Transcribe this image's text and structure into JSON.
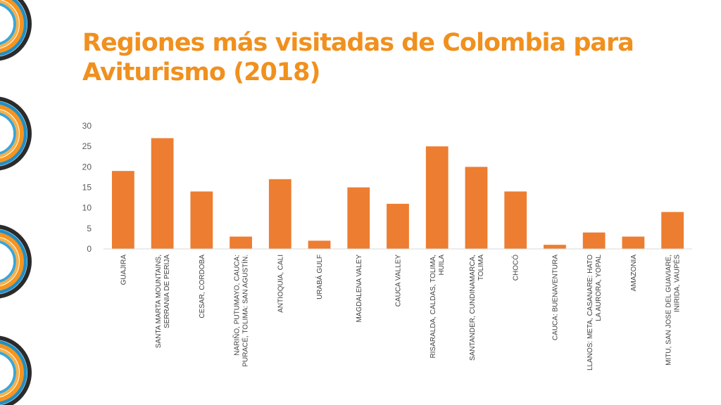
{
  "title": "Regiones más visitadas de Colombia para Aviturismo (2018)",
  "colors": {
    "title": "#f0901e",
    "bar": "#ed7d31",
    "axis": "#d9d9d9",
    "tick_text": "#595959"
  },
  "chart_data": {
    "type": "bar",
    "title": "Regiones más visitadas de Colombia para Aviturismo (2018)",
    "xlabel": "",
    "ylabel": "",
    "ylim": [
      0,
      30
    ],
    "yticks": [
      0,
      5,
      10,
      15,
      20,
      25,
      30
    ],
    "grid": false,
    "legend": "none",
    "categories": [
      [
        "GUAJIRA"
      ],
      [
        "SANTA MARTA MOUNTAINS,",
        "SERRANIA DE PERIJA"
      ],
      [
        "CESAR, CORDOBA"
      ],
      [
        "NARIÑO, PUTUMAYO, CAUCA:",
        "PURACÉ, TOLIMA: SAN AGUSTÍN."
      ],
      [
        "ANTIOQUIA, CALI"
      ],
      [
        "URABÁ GULF"
      ],
      [
        "MAGDALENA VALEY"
      ],
      [
        "CAUCA VALLEY"
      ],
      [
        "RISARALDA, CALDAS, TOLIMA,",
        "HUILA"
      ],
      [
        "SANTANDER, CUNDINAMARCA,",
        "TOLIMA"
      ],
      [
        "CHOCÓ"
      ],
      [
        "CAUCA: BUENAVENTURA"
      ],
      [
        "LLANOS: META, CASANARE: HATO",
        "LA AURORA, YOPAL"
      ],
      [
        "AMAZONIA"
      ],
      [
        "MITU, SAN JOSE DEL GUAVIARE,",
        "INIRIDA, VAUPÉS"
      ]
    ],
    "values": [
      19,
      27,
      14,
      3,
      17,
      2,
      15,
      11,
      25,
      20,
      14,
      1,
      4,
      3,
      9
    ]
  }
}
